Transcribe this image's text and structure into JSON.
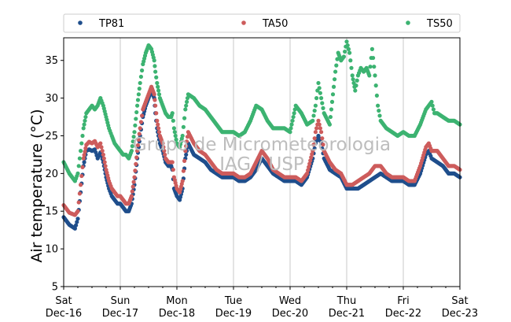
{
  "chart_data": {
    "type": "scatter",
    "ylabel": "Air temperature (°C)",
    "ylim": [
      5,
      38
    ],
    "yticks": [
      5,
      10,
      15,
      20,
      25,
      30,
      35
    ],
    "xlim": [
      "2018-12-16",
      "2018-12-23"
    ],
    "xticks": [
      {
        "day": "Sat",
        "date": "Dec-16"
      },
      {
        "day": "Sun",
        "date": "Dec-17"
      },
      {
        "day": "Mon",
        "date": "Dec-18"
      },
      {
        "day": "Tue",
        "date": "Dec-19"
      },
      {
        "day": "Wed",
        "date": "Dec-20"
      },
      {
        "day": "Thu",
        "date": "Dec-21"
      },
      {
        "day": "Fri",
        "date": "Dec-22"
      },
      {
        "day": "Sat",
        "date": "Dec-23"
      }
    ],
    "grid": "vertical",
    "legend_position": "top",
    "watermark": [
      "Grupo de Micrometeorologia",
      "IAG / USP"
    ],
    "colors": {
      "TP81": "#1f4e8c",
      "TA50": "#cd5c5c",
      "TS50": "#3cb371"
    },
    "series": [
      {
        "name": "TP81",
        "x_unit": "days since Dec-16 00:00",
        "points": [
          [
            0.0,
            14.2
          ],
          [
            0.1,
            13.2
          ],
          [
            0.2,
            12.7
          ],
          [
            0.25,
            14.0
          ],
          [
            0.3,
            17.5
          ],
          [
            0.35,
            21.0
          ],
          [
            0.4,
            23.0
          ],
          [
            0.45,
            23.2
          ],
          [
            0.5,
            23.0
          ],
          [
            0.55,
            23.2
          ],
          [
            0.6,
            22.0
          ],
          [
            0.65,
            22.8
          ],
          [
            0.7,
            21.5
          ],
          [
            0.75,
            19.5
          ],
          [
            0.8,
            18.0
          ],
          [
            0.85,
            17.0
          ],
          [
            0.9,
            16.5
          ],
          [
            0.95,
            16.0
          ],
          [
            1.0,
            16.0
          ],
          [
            1.05,
            15.5
          ],
          [
            1.1,
            15.0
          ],
          [
            1.15,
            15.0
          ],
          [
            1.2,
            16.0
          ],
          [
            1.25,
            18.5
          ],
          [
            1.3,
            22.0
          ],
          [
            1.35,
            25.0
          ],
          [
            1.4,
            27.5
          ],
          [
            1.45,
            29.0
          ],
          [
            1.5,
            30.0
          ],
          [
            1.55,
            31.0
          ],
          [
            1.6,
            30.0
          ],
          [
            1.62,
            28.0
          ],
          [
            1.65,
            26.0
          ],
          [
            1.7,
            24.0
          ],
          [
            1.75,
            23.0
          ],
          [
            1.8,
            21.5
          ],
          [
            1.85,
            21.0
          ],
          [
            1.9,
            21.0
          ],
          [
            1.92,
            20.5
          ],
          [
            1.95,
            18.0
          ],
          [
            2.0,
            17.0
          ],
          [
            2.05,
            16.5
          ],
          [
            2.1,
            18.0
          ],
          [
            2.15,
            22.0
          ],
          [
            2.2,
            24.0
          ],
          [
            2.3,
            22.5
          ],
          [
            2.4,
            22.0
          ],
          [
            2.5,
            21.5
          ],
          [
            2.6,
            20.5
          ],
          [
            2.7,
            20.0
          ],
          [
            2.8,
            19.5
          ],
          [
            2.9,
            19.5
          ],
          [
            3.0,
            19.5
          ],
          [
            3.1,
            19.0
          ],
          [
            3.2,
            19.0
          ],
          [
            3.3,
            19.5
          ],
          [
            3.4,
            20.5
          ],
          [
            3.5,
            22.0
          ],
          [
            3.6,
            21.0
          ],
          [
            3.7,
            20.0
          ],
          [
            3.8,
            19.5
          ],
          [
            3.9,
            19.0
          ],
          [
            4.0,
            19.0
          ],
          [
            4.1,
            19.0
          ],
          [
            4.2,
            18.5
          ],
          [
            4.3,
            19.5
          ],
          [
            4.4,
            22.0
          ],
          [
            4.45,
            24.0
          ],
          [
            4.5,
            25.0
          ],
          [
            4.55,
            24.0
          ],
          [
            4.6,
            22.0
          ],
          [
            4.7,
            20.5
          ],
          [
            4.8,
            20.0
          ],
          [
            4.9,
            19.5
          ],
          [
            5.0,
            18.0
          ],
          [
            5.1,
            18.0
          ],
          [
            5.2,
            18.0
          ],
          [
            5.3,
            18.5
          ],
          [
            5.4,
            19.0
          ],
          [
            5.5,
            19.5
          ],
          [
            5.6,
            20.0
          ],
          [
            5.7,
            19.5
          ],
          [
            5.8,
            19.0
          ],
          [
            5.9,
            19.0
          ],
          [
            6.0,
            19.0
          ],
          [
            6.1,
            18.5
          ],
          [
            6.2,
            18.5
          ],
          [
            6.3,
            20.0
          ],
          [
            6.4,
            22.5
          ],
          [
            6.45,
            23.0
          ],
          [
            6.5,
            22.0
          ],
          [
            6.6,
            21.5
          ],
          [
            6.7,
            21.0
          ],
          [
            6.8,
            20.0
          ],
          [
            6.9,
            20.0
          ],
          [
            7.0,
            19.5
          ]
        ]
      },
      {
        "name": "TA50",
        "x_unit": "days since Dec-16 00:00",
        "points": [
          [
            0.0,
            15.8
          ],
          [
            0.1,
            14.8
          ],
          [
            0.2,
            14.5
          ],
          [
            0.25,
            15.0
          ],
          [
            0.3,
            18.5
          ],
          [
            0.35,
            22.0
          ],
          [
            0.4,
            23.8
          ],
          [
            0.45,
            24.2
          ],
          [
            0.5,
            24.0
          ],
          [
            0.55,
            24.3
          ],
          [
            0.6,
            23.5
          ],
          [
            0.65,
            24.0
          ],
          [
            0.7,
            22.5
          ],
          [
            0.75,
            20.5
          ],
          [
            0.8,
            19.0
          ],
          [
            0.85,
            18.0
          ],
          [
            0.9,
            17.5
          ],
          [
            0.95,
            17.0
          ],
          [
            1.0,
            17.0
          ],
          [
            1.05,
            16.5
          ],
          [
            1.1,
            16.0
          ],
          [
            1.15,
            16.0
          ],
          [
            1.2,
            17.0
          ],
          [
            1.25,
            19.5
          ],
          [
            1.3,
            23.0
          ],
          [
            1.35,
            26.0
          ],
          [
            1.4,
            28.5
          ],
          [
            1.45,
            29.5
          ],
          [
            1.5,
            30.5
          ],
          [
            1.55,
            31.5
          ],
          [
            1.6,
            30.5
          ],
          [
            1.62,
            29.0
          ],
          [
            1.65,
            27.0
          ],
          [
            1.7,
            25.0
          ],
          [
            1.75,
            24.0
          ],
          [
            1.8,
            22.0
          ],
          [
            1.85,
            21.5
          ],
          [
            1.9,
            21.5
          ],
          [
            1.92,
            21.5
          ],
          [
            1.95,
            19.5
          ],
          [
            2.0,
            18.0
          ],
          [
            2.05,
            17.5
          ],
          [
            2.1,
            19.0
          ],
          [
            2.15,
            23.0
          ],
          [
            2.2,
            25.5
          ],
          [
            2.3,
            24.0
          ],
          [
            2.4,
            23.0
          ],
          [
            2.5,
            22.5
          ],
          [
            2.6,
            21.5
          ],
          [
            2.7,
            20.5
          ],
          [
            2.8,
            20.0
          ],
          [
            2.9,
            20.0
          ],
          [
            3.0,
            20.0
          ],
          [
            3.1,
            19.5
          ],
          [
            3.2,
            19.5
          ],
          [
            3.3,
            20.0
          ],
          [
            3.4,
            21.5
          ],
          [
            3.5,
            23.0
          ],
          [
            3.6,
            22.0
          ],
          [
            3.7,
            20.5
          ],
          [
            3.8,
            20.0
          ],
          [
            3.9,
            19.5
          ],
          [
            4.0,
            19.5
          ],
          [
            4.1,
            19.5
          ],
          [
            4.2,
            19.0
          ],
          [
            4.3,
            20.0
          ],
          [
            4.4,
            23.0
          ],
          [
            4.45,
            25.5
          ],
          [
            4.5,
            27.0
          ],
          [
            4.55,
            25.5
          ],
          [
            4.6,
            23.0
          ],
          [
            4.7,
            21.5
          ],
          [
            4.8,
            20.5
          ],
          [
            4.9,
            20.0
          ],
          [
            5.0,
            18.5
          ],
          [
            5.1,
            18.5
          ],
          [
            5.2,
            19.0
          ],
          [
            5.3,
            19.5
          ],
          [
            5.4,
            20.0
          ],
          [
            5.5,
            21.0
          ],
          [
            5.6,
            21.0
          ],
          [
            5.7,
            20.0
          ],
          [
            5.8,
            19.5
          ],
          [
            5.9,
            19.5
          ],
          [
            6.0,
            19.5
          ],
          [
            6.1,
            19.0
          ],
          [
            6.2,
            19.0
          ],
          [
            6.3,
            21.0
          ],
          [
            6.4,
            23.5
          ],
          [
            6.45,
            24.0
          ],
          [
            6.5,
            23.0
          ],
          [
            6.6,
            23.0
          ],
          [
            6.7,
            22.0
          ],
          [
            6.8,
            21.0
          ],
          [
            6.9,
            21.0
          ],
          [
            7.0,
            20.5
          ]
        ]
      },
      {
        "name": "TS50",
        "x_unit": "days since Dec-16 00:00",
        "points": [
          [
            0.0,
            21.5
          ],
          [
            0.1,
            20.0
          ],
          [
            0.2,
            19.0
          ],
          [
            0.25,
            20.0
          ],
          [
            0.3,
            23.0
          ],
          [
            0.35,
            26.0
          ],
          [
            0.4,
            28.0
          ],
          [
            0.45,
            28.5
          ],
          [
            0.5,
            29.0
          ],
          [
            0.55,
            28.5
          ],
          [
            0.6,
            29.0
          ],
          [
            0.65,
            30.0
          ],
          [
            0.7,
            29.0
          ],
          [
            0.75,
            27.5
          ],
          [
            0.8,
            26.0
          ],
          [
            0.85,
            25.0
          ],
          [
            0.9,
            24.0
          ],
          [
            0.95,
            23.5
          ],
          [
            1.0,
            23.0
          ],
          [
            1.05,
            22.5
          ],
          [
            1.1,
            22.5
          ],
          [
            1.15,
            22.0
          ],
          [
            1.2,
            23.0
          ],
          [
            1.25,
            25.5
          ],
          [
            1.3,
            29.0
          ],
          [
            1.35,
            32.0
          ],
          [
            1.4,
            34.5
          ],
          [
            1.45,
            36.0
          ],
          [
            1.5,
            37.0
          ],
          [
            1.55,
            36.5
          ],
          [
            1.6,
            35.0
          ],
          [
            1.62,
            33.5
          ],
          [
            1.65,
            32.0
          ],
          [
            1.7,
            30.0
          ],
          [
            1.75,
            29.0
          ],
          [
            1.8,
            28.0
          ],
          [
            1.85,
            27.5
          ],
          [
            1.9,
            27.5
          ],
          [
            1.92,
            28.0
          ],
          [
            1.95,
            26.0
          ],
          [
            2.0,
            24.0
          ],
          [
            2.05,
            23.5
          ],
          [
            2.1,
            25.0
          ],
          [
            2.15,
            28.5
          ],
          [
            2.2,
            30.5
          ],
          [
            2.3,
            30.0
          ],
          [
            2.4,
            29.0
          ],
          [
            2.5,
            28.5
          ],
          [
            2.6,
            27.5
          ],
          [
            2.7,
            26.5
          ],
          [
            2.8,
            25.5
          ],
          [
            2.9,
            25.5
          ],
          [
            3.0,
            25.5
          ],
          [
            3.1,
            25.0
          ],
          [
            3.2,
            25.5
          ],
          [
            3.3,
            27.0
          ],
          [
            3.4,
            29.0
          ],
          [
            3.5,
            28.5
          ],
          [
            3.6,
            27.0
          ],
          [
            3.7,
            26.0
          ],
          [
            3.8,
            26.0
          ],
          [
            3.9,
            26.0
          ],
          [
            4.0,
            25.5
          ],
          [
            4.1,
            29.0
          ],
          [
            4.2,
            28.0
          ],
          [
            4.3,
            26.5
          ],
          [
            4.4,
            27.0
          ],
          [
            4.45,
            29.0
          ],
          [
            4.5,
            32.0
          ],
          [
            4.55,
            30.0
          ],
          [
            4.6,
            28.0
          ],
          [
            4.7,
            26.5
          ],
          [
            4.8,
            33.5
          ],
          [
            4.85,
            36.0
          ],
          [
            4.9,
            35.0
          ],
          [
            4.95,
            35.5
          ],
          [
            5.0,
            37.5
          ],
          [
            5.05,
            36.0
          ],
          [
            5.1,
            33.0
          ],
          [
            5.15,
            31.0
          ],
          [
            5.2,
            33.0
          ],
          [
            5.25,
            34.0
          ],
          [
            5.3,
            33.5
          ],
          [
            5.35,
            34.0
          ],
          [
            5.4,
            33.0
          ],
          [
            5.45,
            36.5
          ],
          [
            5.5,
            33.0
          ],
          [
            5.55,
            29.0
          ],
          [
            5.6,
            27.0
          ],
          [
            5.7,
            26.0
          ],
          [
            5.8,
            25.5
          ],
          [
            5.9,
            25.0
          ],
          [
            6.0,
            25.5
          ],
          [
            6.1,
            25.0
          ],
          [
            6.2,
            25.0
          ],
          [
            6.3,
            26.5
          ],
          [
            6.4,
            28.5
          ],
          [
            6.45,
            29.0
          ],
          [
            6.5,
            29.5
          ],
          [
            6.55,
            28.0
          ],
          [
            6.6,
            28.0
          ],
          [
            6.7,
            27.5
          ],
          [
            6.8,
            27.0
          ],
          [
            6.9,
            27.0
          ],
          [
            7.0,
            26.5
          ]
        ]
      }
    ]
  }
}
